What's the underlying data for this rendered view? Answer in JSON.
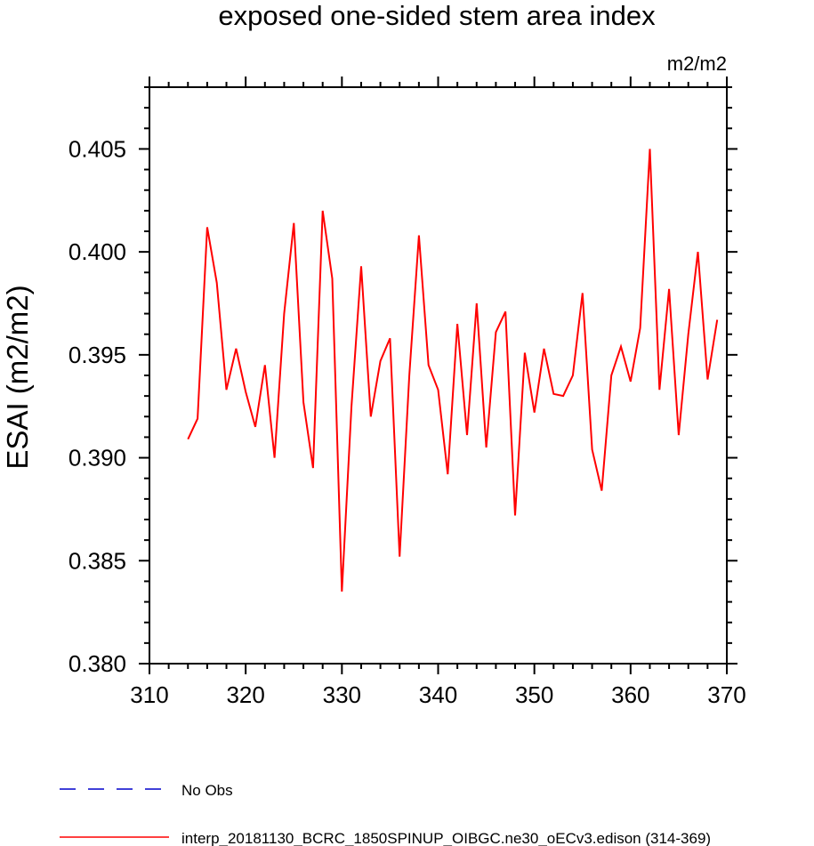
{
  "chart_data": {
    "type": "line",
    "title": "exposed one-sided stem area index",
    "units_label": "m2/m2",
    "ylabel": "ESAI  (m2/m2)",
    "xlabel": "",
    "xlim": [
      310,
      370
    ],
    "ylim": [
      0.38,
      0.408
    ],
    "x_ticks": [
      "310",
      "320",
      "330",
      "340",
      "350",
      "360",
      "370"
    ],
    "y_ticks": [
      "0.380",
      "0.385",
      "0.390",
      "0.395",
      "0.400",
      "0.405"
    ],
    "grid": false,
    "legend_position": "bottom-left",
    "series": [
      {
        "name": "No Obs",
        "color": "#0000cc",
        "dash": "dashed",
        "x": [],
        "y": []
      },
      {
        "name": "interp_20181130_BCRC_1850SPINUP_OIBGC.ne30_oECv3.edison (314-369)",
        "color": "#ff0000",
        "dash": "solid",
        "x": [
          314,
          315,
          316,
          317,
          318,
          319,
          320,
          321,
          322,
          323,
          324,
          325,
          326,
          327,
          328,
          329,
          330,
          331,
          332,
          333,
          334,
          335,
          336,
          337,
          338,
          339,
          340,
          341,
          342,
          343,
          344,
          345,
          346,
          347,
          348,
          349,
          350,
          351,
          352,
          353,
          354,
          355,
          356,
          357,
          358,
          359,
          360,
          361,
          362,
          363,
          364,
          365,
          366,
          367,
          368,
          369
        ],
        "y": [
          0.3909,
          0.3919,
          0.4012,
          0.3985,
          0.3933,
          0.3953,
          0.3932,
          0.3915,
          0.3945,
          0.39,
          0.397,
          0.4014,
          0.3927,
          0.3895,
          0.402,
          0.3987,
          0.3835,
          0.3925,
          0.3993,
          0.392,
          0.3947,
          0.3958,
          0.3852,
          0.394,
          0.4008,
          0.3945,
          0.3933,
          0.3892,
          0.3965,
          0.3911,
          0.3975,
          0.3905,
          0.3961,
          0.3971,
          0.3872,
          0.3951,
          0.3922,
          0.3953,
          0.3931,
          0.393,
          0.394,
          0.398,
          0.3904,
          0.3884,
          0.394,
          0.3954,
          0.3937,
          0.3963,
          0.405,
          0.3933,
          0.3982,
          0.3911,
          0.396,
          0.4,
          0.3938,
          0.3967
        ]
      }
    ]
  }
}
